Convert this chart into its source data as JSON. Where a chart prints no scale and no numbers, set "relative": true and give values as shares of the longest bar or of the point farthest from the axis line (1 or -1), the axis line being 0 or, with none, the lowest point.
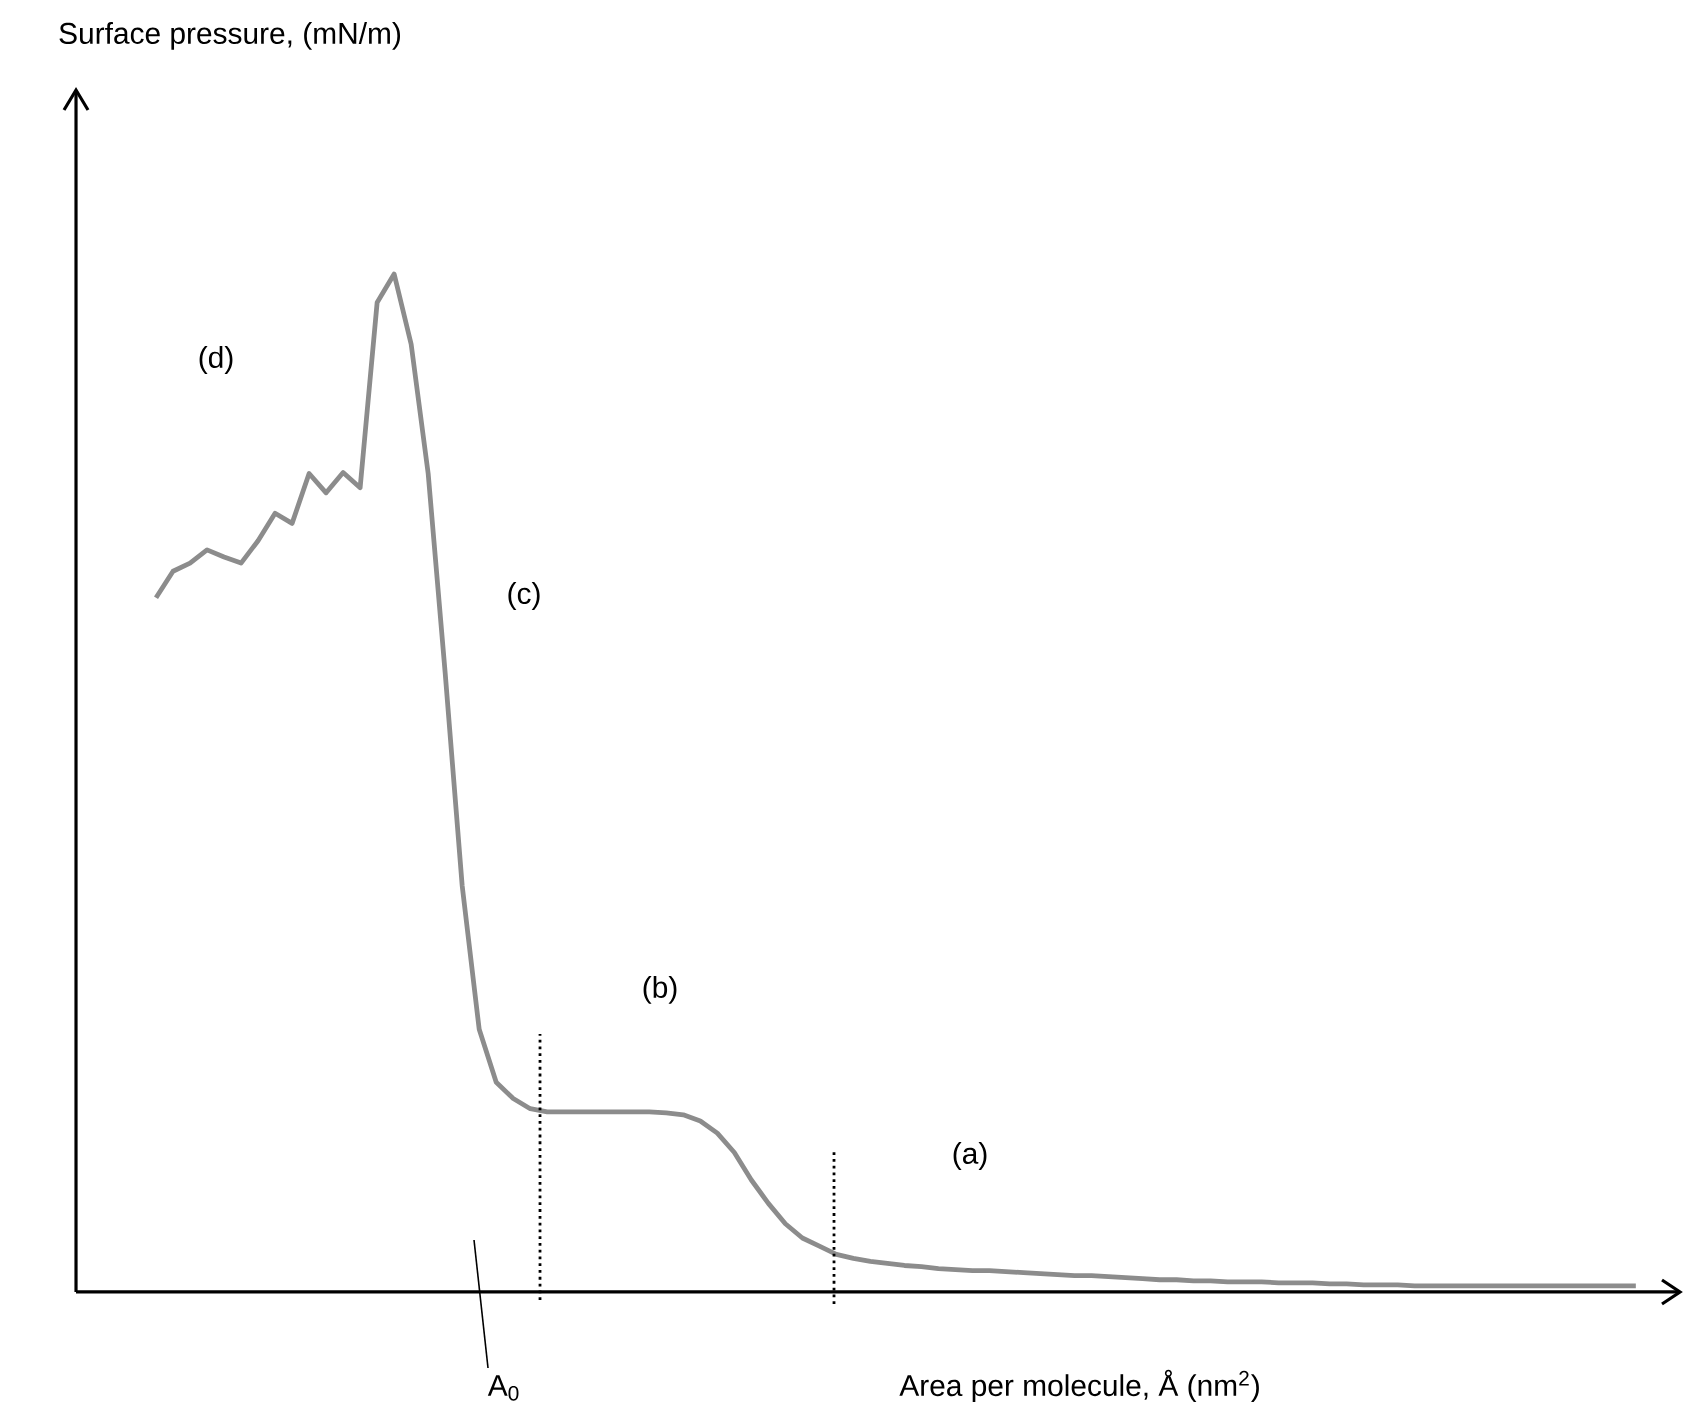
{
  "chart_data": {
    "type": "line",
    "relative": true,
    "xlabel": "Area per molecule, Å (nm$^{2}$)",
    "categories": [
      null,
      null,
      null,
      null,
      null,
      null,
      null,
      null,
      null,
      null,
      null,
      null,
      null,
      null,
      null,
      null,
      null,
      null,
      null,
      null,
      null,
      null,
      null,
      null,
      null,
      null,
      null,
      null,
      null,
      null,
      null,
      null,
      null,
      null,
      null,
      null,
      null,
      null,
      null,
      null,
      null,
      null,
      null,
      null,
      null,
      null,
      null,
      null,
      null,
      null,
      null,
      null,
      null,
      null,
      null,
      null,
      null,
      null,
      null,
      null,
      null,
      null,
      null,
      null,
      null,
      null,
      null,
      null,
      null,
      null,
      null,
      null,
      null,
      null,
      null,
      null,
      null,
      null,
      null,
      null,
      null,
      null,
      null,
      null,
      null,
      null,
      null,
      null
    ],
    "series": [
      {
        "color": "#8c8c8c",
        "values": [
          0.682,
          0.708,
          0.716,
          0.729,
          0.722,
          0.716,
          0.738,
          0.765,
          0.755,
          0.804,
          0.785,
          0.805,
          0.79,
          0.972,
          1.0,
          0.931,
          0.804,
          0.608,
          0.399,
          0.258,
          0.206,
          0.19,
          0.18,
          0.177,
          0.177,
          0.177,
          0.177,
          0.177,
          0.177,
          0.177,
          0.176,
          0.174,
          0.168,
          0.156,
          0.137,
          0.11,
          0.087,
          0.067,
          0.053,
          0.045,
          0.037,
          0.033,
          0.03,
          0.028,
          0.026,
          0.025,
          0.023,
          0.022,
          0.021,
          0.021,
          0.02,
          0.019,
          0.018,
          0.017,
          0.016,
          0.016,
          0.015,
          0.014,
          0.013,
          0.012,
          0.012,
          0.011,
          0.011,
          0.01,
          0.01,
          0.01,
          0.009,
          0.009,
          0.009,
          0.008,
          0.008,
          0.007,
          0.007,
          0.007,
          0.006,
          0.006,
          0.006,
          0.006,
          0.006,
          0.006,
          0.006,
          0.006,
          0.006,
          0.006,
          0.006,
          0.006,
          0.006,
          0.006
        ]
      }
    ],
    "annotations": [
      "(a)",
      "(b)",
      "(c)",
      "(d)",
      "A$_{0}$",
      "Surface pressure, (mN/m)"
    ]
  }
}
